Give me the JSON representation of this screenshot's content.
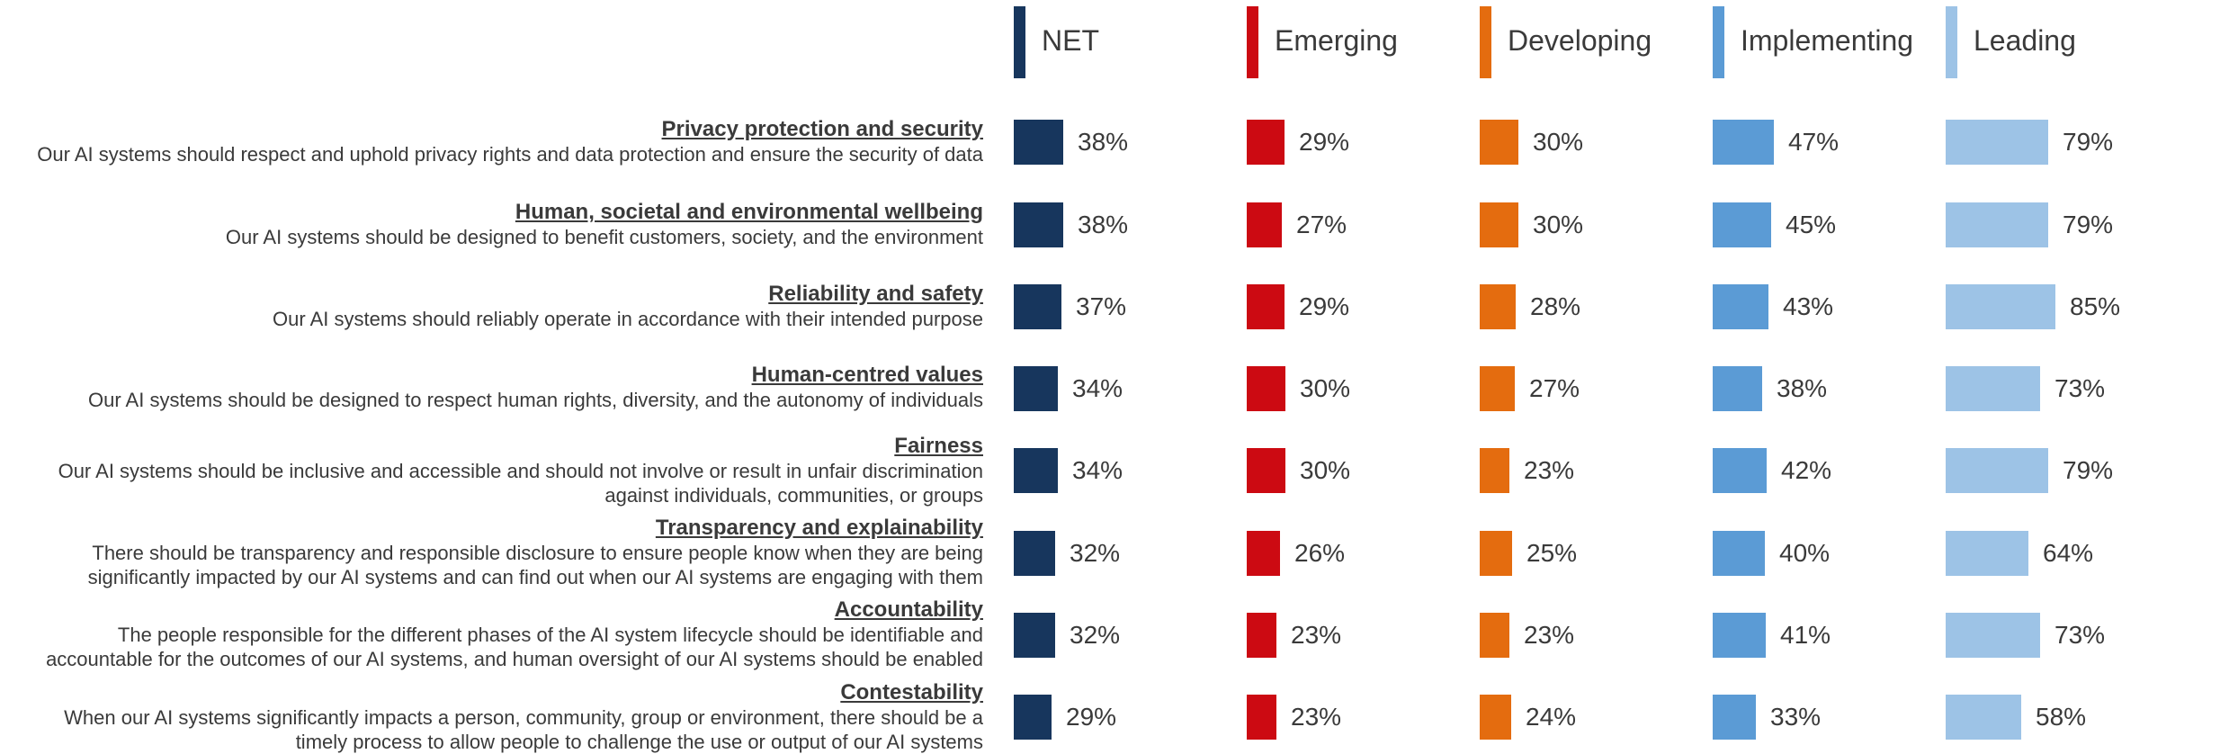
{
  "chart_data": {
    "type": "bar",
    "series": [
      {
        "name": "NET",
        "color": "#17365d",
        "values": [
          38,
          38,
          37,
          34,
          34,
          32,
          32,
          29
        ]
      },
      {
        "name": "Emerging",
        "color": "#cc0a12",
        "values": [
          29,
          27,
          29,
          30,
          30,
          26,
          23,
          23
        ]
      },
      {
        "name": "Developing",
        "color": "#e46c0f",
        "values": [
          30,
          30,
          28,
          27,
          23,
          25,
          23,
          24
        ]
      },
      {
        "name": "Implementing",
        "color": "#5b9bd5",
        "values": [
          47,
          45,
          43,
          38,
          42,
          40,
          41,
          33
        ]
      },
      {
        "name": "Leading",
        "color": "#9dc3e6",
        "values": [
          79,
          79,
          85,
          73,
          79,
          64,
          73,
          58
        ]
      }
    ],
    "value_labels": [
      [
        "38%",
        "38%",
        "37%",
        "34%",
        "34%",
        "32%",
        "32%",
        "29%"
      ],
      [
        "29%",
        "27%",
        "29%",
        "30%",
        "30%",
        "26%",
        "23%",
        "23%"
      ],
      [
        "30%",
        "30%",
        "28%",
        "27%",
        "23%",
        "25%",
        "23%",
        "24%"
      ],
      [
        "47%",
        "45%",
        "43%",
        "38%",
        "42%",
        "40%",
        "41%",
        "33%"
      ],
      [
        "79%",
        "79%",
        "85%",
        "73%",
        "79%",
        "64%",
        "73%",
        "58%"
      ]
    ],
    "categories": [
      {
        "title": "Privacy protection and security",
        "desc": [
          "Our AI systems should respect and uphold privacy rights and data protection and ensure the security of data"
        ]
      },
      {
        "title": "Human, societal and environmental wellbeing",
        "desc": [
          "Our AI systems should be designed to benefit customers, society, and the environment"
        ]
      },
      {
        "title": "Reliability and safety",
        "desc": [
          "Our AI systems should reliably operate in accordance with their intended purpose"
        ]
      },
      {
        "title": "Human-centred values",
        "desc": [
          "Our AI systems should be designed to respect human rights, diversity, and the autonomy of individuals"
        ]
      },
      {
        "title": "Fairness",
        "desc": [
          "Our AI systems should be inclusive and accessible and should not involve or result in unfair discrimination",
          "against individuals, communities, or groups"
        ]
      },
      {
        "title": "Transparency and explainability",
        "desc": [
          "There should be transparency and responsible disclosure to ensure people know when they are being",
          "significantly impacted by our AI systems and can find out when our AI systems are engaging with them"
        ]
      },
      {
        "title": "Accountability",
        "desc": [
          "The people responsible for the different phases of the AI system lifecycle should be identifiable and",
          "accountable for the outcomes of our AI systems, and human oversight of our AI systems should be enabled"
        ]
      },
      {
        "title": "Contestability",
        "desc": [
          "When our AI systems significantly impacts a person, community, group or environment, there should be a",
          "timely process to allow people to challenge the use or output of our AI systems"
        ]
      }
    ],
    "legend_placement": "top",
    "grid": false
  }
}
